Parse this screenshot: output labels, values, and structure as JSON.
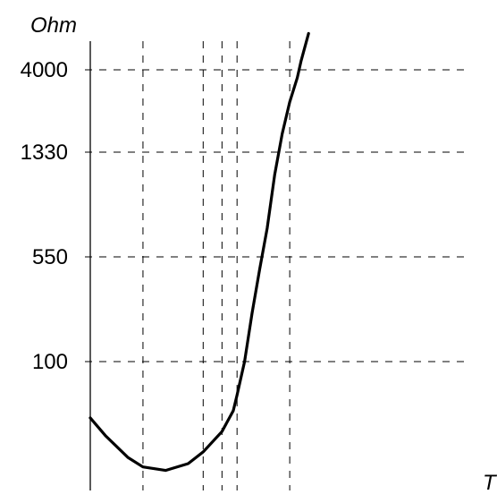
{
  "chart_data": {
    "type": "line",
    "title": "",
    "xlabel": "T",
    "ylabel": "Ohm",
    "grid": true,
    "yticks": [
      {
        "label": "4000",
        "value": 4000
      },
      {
        "label": "1330",
        "value": 1330
      },
      {
        "label": "550",
        "value": 550
      },
      {
        "label": "100",
        "value": 100
      }
    ],
    "series": [
      {
        "name": "",
        "color": "#000000",
        "points": [
          {
            "x": 0.0,
            "y": 40
          },
          {
            "x": 0.04,
            "y": 30
          },
          {
            "x": 0.1,
            "y": 21
          },
          {
            "x": 0.14,
            "y": 18
          },
          {
            "x": 0.2,
            "y": 17
          },
          {
            "x": 0.26,
            "y": 19
          },
          {
            "x": 0.3,
            "y": 23
          },
          {
            "x": 0.35,
            "y": 32
          },
          {
            "x": 0.38,
            "y": 45
          },
          {
            "x": 0.39,
            "y": 58
          },
          {
            "x": 0.41,
            "y": 100
          },
          {
            "x": 0.43,
            "y": 220
          },
          {
            "x": 0.45,
            "y": 450
          },
          {
            "x": 0.47,
            "y": 700
          },
          {
            "x": 0.49,
            "y": 1100
          },
          {
            "x": 0.51,
            "y": 1700
          },
          {
            "x": 0.53,
            "y": 2600
          },
          {
            "x": 0.55,
            "y": 3600
          },
          {
            "x": 0.56,
            "y": 4500
          },
          {
            "x": 0.58,
            "y": 6500
          }
        ]
      }
    ],
    "vgrid_x": [
      0.14,
      0.3,
      0.35,
      0.39,
      0.53
    ]
  }
}
